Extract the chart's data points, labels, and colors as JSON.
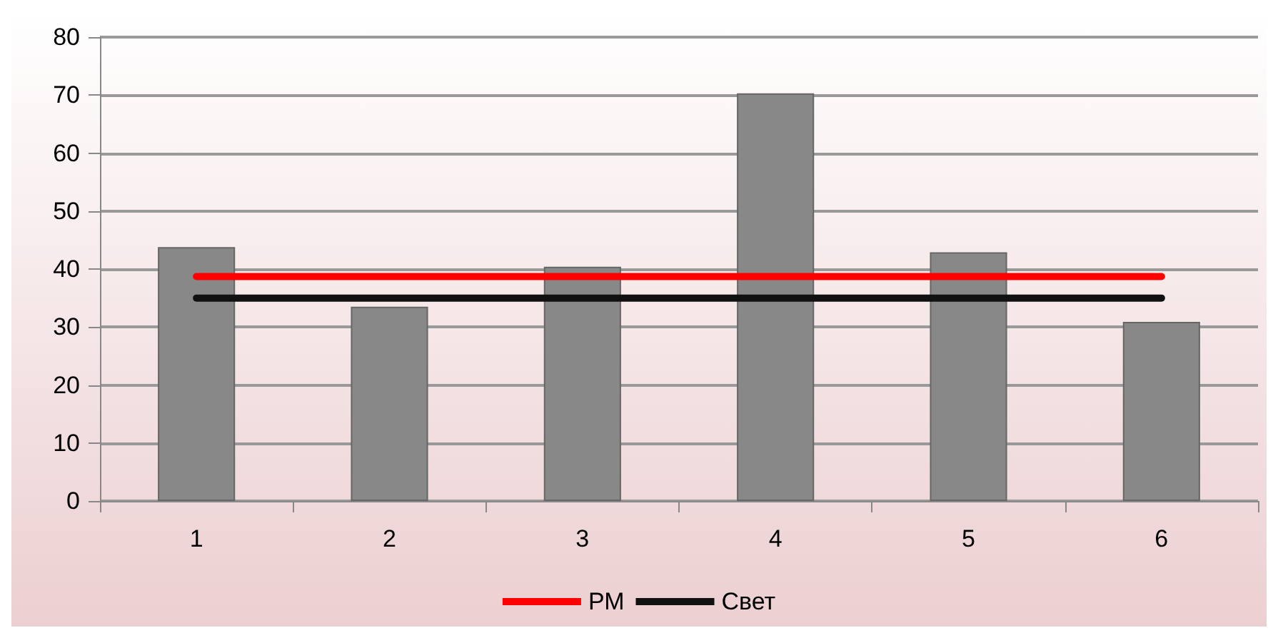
{
  "chart_data": {
    "type": "bar",
    "categories": [
      "1",
      "2",
      "3",
      "4",
      "5",
      "6"
    ],
    "series": [
      {
        "color": "#888888",
        "values": [
          43.8,
          33.5,
          40.4,
          70.3,
          42.9,
          30.9
        ]
      },
      {
        "type": "line",
        "name": "РМ",
        "color": "#ff0000",
        "values": [
          38.7,
          38.7,
          38.7,
          38.7,
          38.7,
          38.7
        ]
      },
      {
        "type": "line",
        "name": "Свет",
        "color": "#111111",
        "values": [
          35,
          35,
          35,
          35,
          35,
          35
        ]
      }
    ],
    "ylim": [
      0,
      80
    ],
    "yticks": [
      0,
      10,
      20,
      30,
      40,
      50,
      60,
      70,
      80
    ],
    "grid": "y",
    "legend": "bottom",
    "marker": "none",
    "line_style": "solid"
  }
}
